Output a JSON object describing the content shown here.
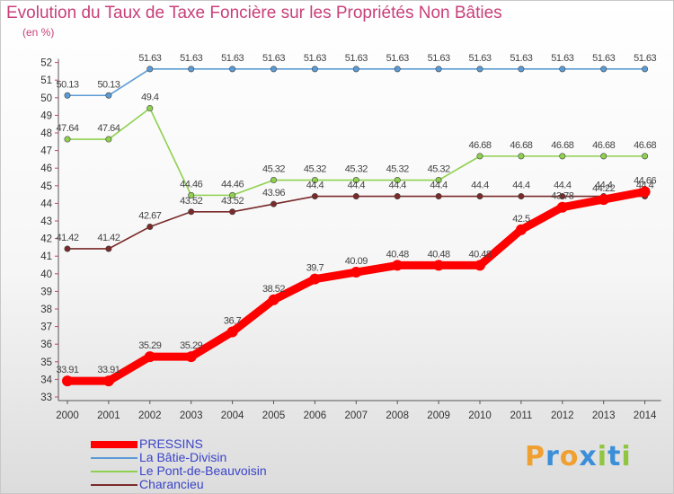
{
  "chart_data": {
    "type": "line",
    "title": "Evolution du Taux de Taxe Foncière sur les Propriétés Non Bâties",
    "ylabel": "(en %)",
    "x": [
      "2000",
      "2001",
      "2002",
      "2003",
      "2004",
      "2005",
      "2006",
      "2007",
      "2008",
      "2009",
      "2010",
      "2011",
      "2012",
      "2013",
      "2014"
    ],
    "ylim": [
      33,
      52
    ],
    "yticks": [
      33,
      34,
      35,
      36,
      37,
      38,
      39,
      40,
      41,
      42,
      43,
      44,
      45,
      46,
      47,
      48,
      49,
      50,
      51,
      52
    ],
    "grid": false,
    "legend_position": "bottom",
    "series": [
      {
        "name": "PRESSINS",
        "color": "#ff0000",
        "values": [
          33.91,
          33.91,
          35.29,
          35.29,
          36.7,
          38.52,
          39.7,
          40.09,
          40.48,
          40.48,
          40.48,
          42.5,
          43.78,
          44.22,
          44.66
        ],
        "labels": [
          "33.91",
          "33.91",
          "35.29",
          "35.29",
          "36.7",
          "38.52",
          "39.7",
          "40.09",
          "40.48",
          "40.48",
          "40.48",
          "42.5",
          "43.78",
          "44.22",
          "44.66"
        ]
      },
      {
        "name": "La Bâtie-Divisin",
        "color": "#5b9bd5",
        "values": [
          50.13,
          50.13,
          51.63,
          51.63,
          51.63,
          51.63,
          51.63,
          51.63,
          51.63,
          51.63,
          51.63,
          51.63,
          51.63,
          51.63,
          51.63
        ],
        "labels": [
          "50.13",
          "50.13",
          "51.63",
          "51.63",
          "51.63",
          "51.63",
          "51.63",
          "51.63",
          "51.63",
          "51.63",
          "51.63",
          "51.63",
          "51.63",
          "51.63",
          "51.63"
        ]
      },
      {
        "name": "Le Pont-de-Beauvoisin",
        "color": "#8fd14f",
        "values": [
          47.64,
          47.64,
          49.4,
          44.46,
          44.46,
          45.32,
          45.32,
          45.32,
          45.32,
          45.32,
          46.68,
          46.68,
          46.68,
          46.68,
          46.68
        ],
        "labels": [
          "47.64",
          "47.64",
          "49.4",
          "44.46",
          "44.46",
          "45.32",
          "45.32",
          "45.32",
          "45.32",
          "45.32",
          "46.68",
          "46.68",
          "46.68",
          "46.68",
          "46.68"
        ]
      },
      {
        "name": "Charancieu",
        "color": "#7a2a2a",
        "values": [
          41.42,
          41.42,
          42.67,
          43.52,
          43.52,
          43.96,
          44.4,
          44.4,
          44.4,
          44.4,
          44.4,
          44.4,
          44.4,
          44.4,
          44.4
        ],
        "labels": [
          "41.42",
          "41.42",
          "42.67",
          "43.52",
          "43.52",
          "43.96",
          "44.4",
          "44.4",
          "44.4",
          "44.4",
          "44.4",
          "44.4",
          "44.4",
          "44.4",
          "44.4"
        ]
      }
    ]
  },
  "logo": {
    "letters": [
      "P",
      "r",
      "o",
      "x",
      "i",
      "t",
      "i"
    ],
    "colors": [
      "#f0a030",
      "#3a8fd8",
      "#f0a030",
      "#3a8fd8",
      "#8fc63f",
      "#3a8fd8",
      "#8fc63f"
    ]
  }
}
